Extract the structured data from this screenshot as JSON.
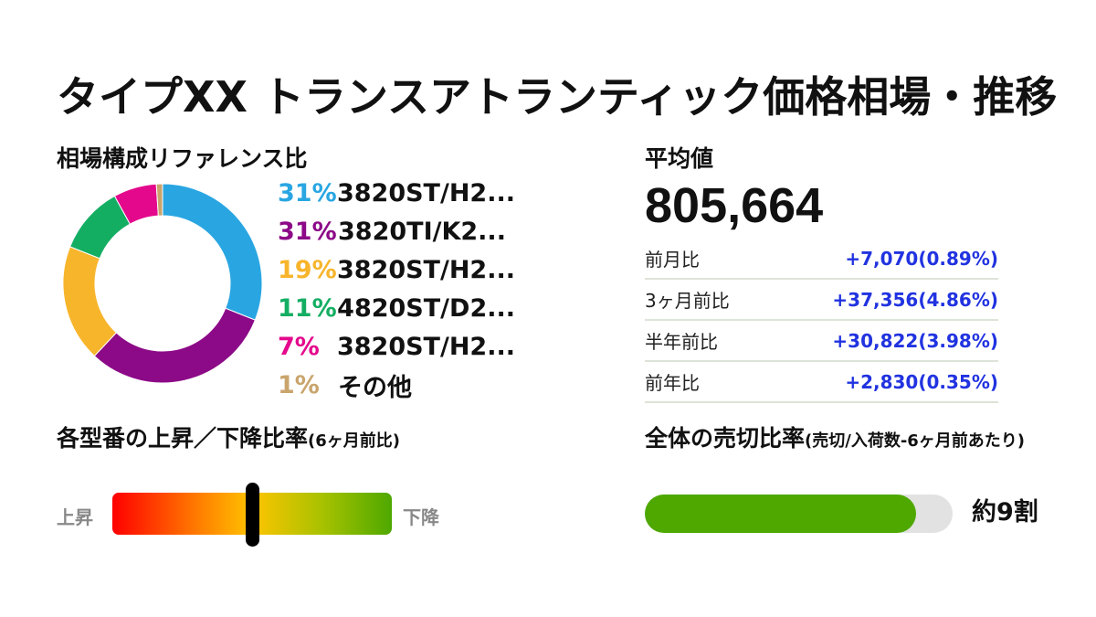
{
  "title": "タイプXX トランスアトランティック価格相場・推移",
  "composition": {
    "heading": "相場構成リファレンス比",
    "colors": [
      "#29a6e2",
      "#8c0a87",
      "#f7b52c",
      "#14ae63",
      "#e4088c",
      "#c9a46c"
    ],
    "items": [
      {
        "pct": "31%",
        "name": "3820ST/H2...",
        "value": 31
      },
      {
        "pct": "31%",
        "name": "3820TI/K2...",
        "value": 31
      },
      {
        "pct": "19%",
        "name": "3820ST/H2...",
        "value": 19
      },
      {
        "pct": "11%",
        "name": "4820ST/D2...",
        "value": 11
      },
      {
        "pct": "7%",
        "name": "3820ST/H2...",
        "value": 7
      },
      {
        "pct": "1%",
        "name": "その他",
        "value": 1
      }
    ]
  },
  "average": {
    "heading": "平均値",
    "value": "805,664",
    "rows": [
      {
        "label": "前月比",
        "value": "+7,070(0.89%)"
      },
      {
        "label": "3ヶ月前比",
        "value": "+37,356(4.86%)"
      },
      {
        "label": "半年前比",
        "value": "+30,822(3.98%)"
      },
      {
        "label": "前年比",
        "value": "+2,830(0.35%)"
      }
    ]
  },
  "updown": {
    "heading": "各型番の上昇／下降比率",
    "heading_small": "(6ヶ月前比)",
    "left_label": "上昇",
    "right_label": "下降",
    "marker_fraction": 0.5
  },
  "sellout": {
    "heading": "全体の売切比率",
    "heading_small": "(売切/入荷数-6ヶ月前あたり)",
    "fill_fraction": 0.88,
    "label": "約9割"
  }
}
